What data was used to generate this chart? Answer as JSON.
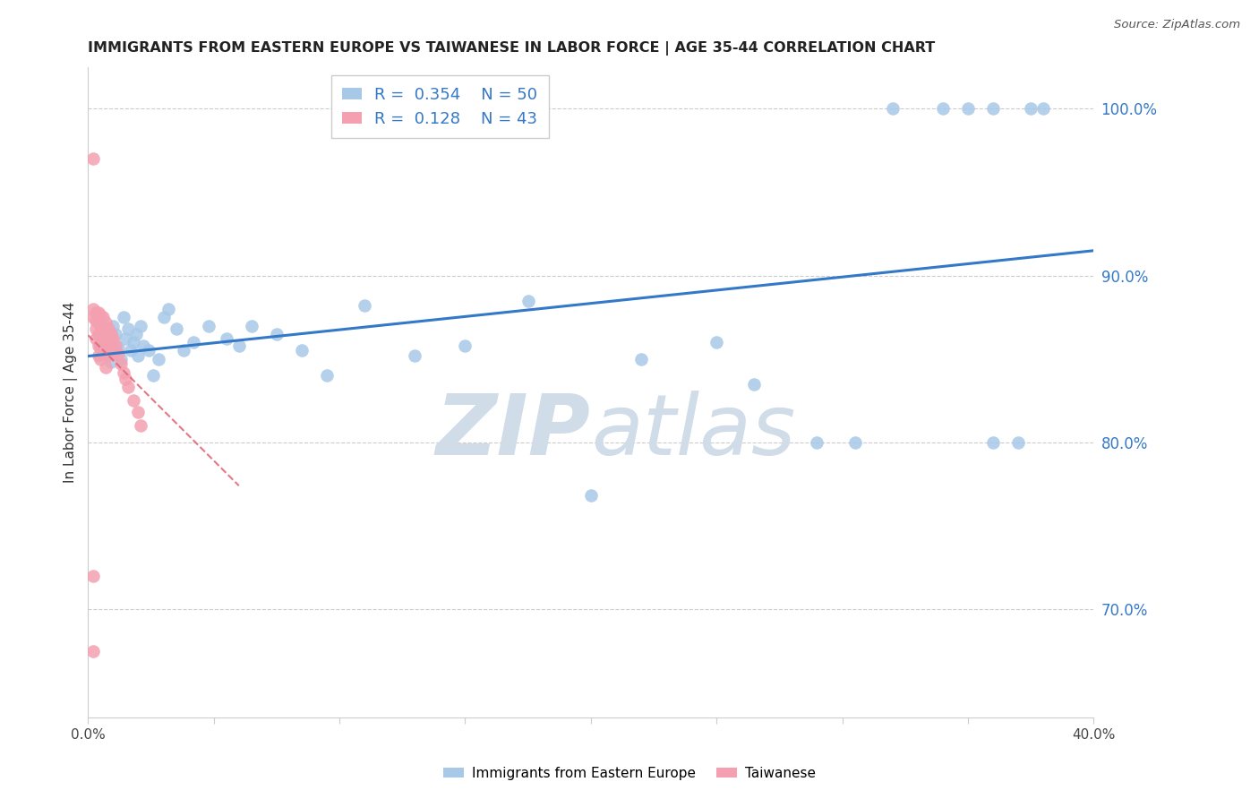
{
  "title": "IMMIGRANTS FROM EASTERN EUROPE VS TAIWANESE IN LABOR FORCE | AGE 35-44 CORRELATION CHART",
  "source": "Source: ZipAtlas.com",
  "ylabel": "In Labor Force | Age 35-44",
  "xlim": [
    0.0,
    0.4
  ],
  "ylim": [
    0.635,
    1.025
  ],
  "xticks": [
    0.0,
    0.05,
    0.1,
    0.15,
    0.2,
    0.25,
    0.3,
    0.35,
    0.4
  ],
  "xticklabels": [
    "0.0%",
    "",
    "",
    "",
    "",
    "",
    "",
    "",
    "40.0%"
  ],
  "yticks_right": [
    0.7,
    0.8,
    0.9,
    1.0
  ],
  "ytick_right_labels": [
    "70.0%",
    "80.0%",
    "90.0%",
    "100.0%"
  ],
  "legend_blue_R": "0.354",
  "legend_blue_N": "50",
  "legend_pink_R": "0.128",
  "legend_pink_N": "43",
  "blue_color": "#a8c8e8",
  "blue_line_color": "#3478c8",
  "pink_color": "#f4a0b0",
  "pink_line_color": "#e06878",
  "watermark_color": "#d0dce8",
  "blue_x": [
    0.005,
    0.007,
    0.008,
    0.009,
    0.01,
    0.011,
    0.012,
    0.013,
    0.014,
    0.015,
    0.016,
    0.017,
    0.018,
    0.019,
    0.02,
    0.021,
    0.022,
    0.024,
    0.026,
    0.028,
    0.03,
    0.032,
    0.035,
    0.038,
    0.042,
    0.048,
    0.055,
    0.06,
    0.065,
    0.075,
    0.085,
    0.095,
    0.11,
    0.13,
    0.15,
    0.175,
    0.2,
    0.22,
    0.25,
    0.265,
    0.29,
    0.305,
    0.32,
    0.34,
    0.35,
    0.36,
    0.375,
    0.36,
    0.37,
    0.38
  ],
  "blue_y": [
    0.858,
    0.862,
    0.855,
    0.848,
    0.87,
    0.865,
    0.857,
    0.85,
    0.875,
    0.862,
    0.868,
    0.855,
    0.86,
    0.865,
    0.852,
    0.87,
    0.858,
    0.855,
    0.84,
    0.85,
    0.875,
    0.88,
    0.868,
    0.855,
    0.86,
    0.87,
    0.862,
    0.858,
    0.87,
    0.865,
    0.855,
    0.84,
    0.882,
    0.852,
    0.858,
    0.885,
    0.768,
    0.85,
    0.86,
    0.835,
    0.8,
    0.8,
    1.0,
    1.0,
    1.0,
    1.0,
    1.0,
    0.8,
    0.8,
    1.0
  ],
  "pink_x": [
    0.002,
    0.002,
    0.002,
    0.003,
    0.003,
    0.003,
    0.003,
    0.004,
    0.004,
    0.004,
    0.004,
    0.004,
    0.005,
    0.005,
    0.005,
    0.005,
    0.005,
    0.006,
    0.006,
    0.006,
    0.006,
    0.007,
    0.007,
    0.007,
    0.007,
    0.008,
    0.008,
    0.008,
    0.009,
    0.009,
    0.01,
    0.01,
    0.011,
    0.012,
    0.013,
    0.014,
    0.015,
    0.016,
    0.018,
    0.02,
    0.021,
    0.002,
    0.002
  ],
  "pink_y": [
    0.97,
    0.88,
    0.875,
    0.878,
    0.873,
    0.868,
    0.862,
    0.878,
    0.872,
    0.865,
    0.858,
    0.852,
    0.876,
    0.87,
    0.863,
    0.857,
    0.85,
    0.875,
    0.868,
    0.86,
    0.853,
    0.872,
    0.866,
    0.858,
    0.845,
    0.868,
    0.86,
    0.852,
    0.865,
    0.857,
    0.862,
    0.853,
    0.858,
    0.853,
    0.847,
    0.842,
    0.838,
    0.833,
    0.825,
    0.818,
    0.81,
    0.675,
    0.72
  ]
}
